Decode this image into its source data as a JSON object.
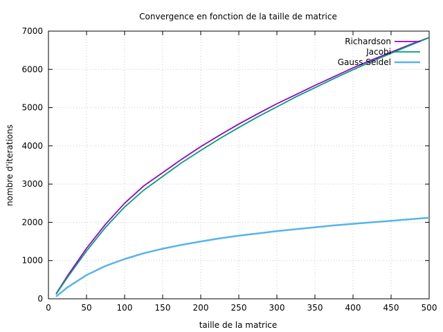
{
  "chart_data": {
    "type": "line",
    "title": "Convergence en fonction de la taille de matrice",
    "xlabel": "taille de la matrice",
    "ylabel": "nombre d'iterations",
    "xlim": [
      0,
      500
    ],
    "ylim": [
      0,
      7000
    ],
    "xticks": [
      0,
      50,
      100,
      150,
      200,
      250,
      300,
      350,
      400,
      450,
      500
    ],
    "yticks": [
      0,
      1000,
      2000,
      3000,
      4000,
      5000,
      6000,
      7000
    ],
    "grid": true,
    "legend_position": "top-right",
    "series": [
      {
        "name": "Richardson",
        "color": "#9400d3",
        "x": [
          10,
          25,
          50,
          75,
          100,
          125,
          150,
          175,
          200,
          225,
          250,
          275,
          300,
          325,
          350,
          375,
          400,
          425,
          450,
          475,
          500
        ],
        "y": [
          130,
          600,
          1320,
          1950,
          2500,
          2950,
          3300,
          3650,
          3980,
          4280,
          4570,
          4840,
          5100,
          5340,
          5580,
          5810,
          6040,
          6250,
          6450,
          6650,
          6830
        ]
      },
      {
        "name": "Jacobi",
        "color": "#009e73",
        "x": [
          10,
          25,
          50,
          75,
          100,
          125,
          150,
          175,
          200,
          225,
          250,
          275,
          300,
          325,
          350,
          375,
          400,
          425,
          450,
          475,
          500
        ],
        "y": [
          120,
          560,
          1250,
          1870,
          2400,
          2840,
          3200,
          3560,
          3880,
          4190,
          4480,
          4760,
          5020,
          5280,
          5520,
          5760,
          5990,
          6210,
          6420,
          6630,
          6830
        ]
      },
      {
        "name": "Gauss Seidel",
        "color": "#56b4e9",
        "x": [
          10,
          25,
          50,
          75,
          100,
          125,
          150,
          175,
          200,
          225,
          250,
          275,
          300,
          325,
          350,
          375,
          400,
          425,
          450,
          475,
          500
        ],
        "y": [
          60,
          300,
          620,
          860,
          1040,
          1190,
          1310,
          1410,
          1500,
          1580,
          1650,
          1710,
          1770,
          1820,
          1870,
          1920,
          1960,
          2000,
          2040,
          2080,
          2120
        ]
      }
    ]
  }
}
